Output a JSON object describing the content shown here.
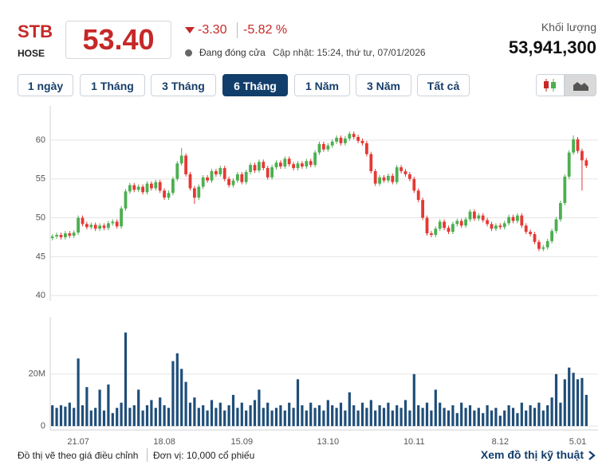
{
  "header": {
    "symbol": "STB",
    "exchange": "HOSE",
    "price": "53.40",
    "change": "-3.30",
    "change_pct": "-5.82 %",
    "status": "Đang đóng cửa",
    "updated": "Cập nhật: 15:24, thứ tư, 07/01/2026",
    "volume_label": "Khối lượng",
    "volume": "53,941,300"
  },
  "buttons": [
    "1 ngày",
    "1 Tháng",
    "3 Tháng",
    "6 Tháng",
    "1 Năm",
    "3 Năm",
    "Tất cả"
  ],
  "active_button": 3,
  "chart_data": [
    {
      "type": "candlestick",
      "up_color": "#4caf50",
      "down_color": "#e53935",
      "grid": true,
      "ylim": [
        39.3,
        64.4
      ],
      "yticks": [
        40,
        45,
        50,
        55,
        60
      ],
      "open": [
        47.4,
        47.6,
        47.8,
        47.5,
        48.0,
        47.7,
        48.1,
        50.0,
        49.2,
        48.8,
        49.1,
        48.6,
        49.0,
        48.7,
        49.3,
        49.5,
        48.9,
        51.2,
        53.4,
        54.2,
        53.6,
        54.0,
        53.3,
        54.4,
        53.8,
        54.6,
        53.5,
        52.6,
        53.2,
        55.0,
        57.0,
        58.0,
        55.6,
        53.8,
        52.6,
        54.0,
        55.2,
        54.8,
        56.0,
        55.6,
        56.4,
        55.0,
        54.2,
        54.8,
        55.6,
        54.6,
        55.9,
        56.8,
        56.1,
        57.2,
        56.4,
        55.2,
        56.5,
        57.1,
        56.6,
        57.6,
        56.9,
        56.4,
        57.0,
        56.6,
        57.3,
        56.8,
        58.4,
        59.5,
        58.8,
        59.3,
        59.8,
        60.3,
        59.6,
        60.2,
        60.8,
        60.4,
        59.9,
        59.6,
        58.2,
        56.0,
        54.4,
        55.2,
        54.8,
        55.4,
        54.6,
        56.5,
        56.0,
        55.6,
        55.0,
        53.5,
        52.3,
        50.0,
        48.0,
        47.8,
        48.6,
        49.5,
        48.7,
        48.2,
        49.2,
        49.6,
        49.0,
        49.8,
        50.8,
        49.9,
        50.3,
        49.7,
        49.2,
        48.6,
        49.0,
        48.8,
        49.3,
        50.1,
        49.6,
        50.3,
        49.0,
        48.2,
        47.9,
        46.9,
        46.0,
        46.2,
        47.0,
        48.3,
        49.8,
        51.9,
        55.3,
        58.4,
        60.1,
        58.6,
        57.4
      ],
      "high": [
        47.9,
        48.1,
        48.1,
        48.3,
        48.3,
        48.4,
        50.3,
        50.3,
        49.5,
        49.4,
        49.4,
        49.3,
        49.3,
        49.6,
        49.8,
        49.8,
        51.5,
        53.7,
        54.5,
        54.5,
        54.3,
        54.3,
        54.7,
        54.7,
        54.9,
        54.9,
        53.8,
        53.5,
        55.3,
        57.3,
        59.0,
        58.3,
        55.9,
        54.1,
        54.3,
        55.5,
        55.5,
        56.3,
        56.3,
        56.7,
        56.7,
        55.3,
        55.1,
        55.9,
        55.9,
        56.2,
        57.1,
        57.1,
        57.5,
        57.5,
        56.7,
        56.8,
        57.4,
        57.4,
        57.9,
        57.9,
        57.2,
        57.3,
        57.3,
        57.6,
        57.6,
        58.7,
        59.8,
        59.8,
        59.6,
        60.1,
        60.6,
        60.6,
        60.5,
        61.1,
        61.1,
        60.7,
        60.2,
        59.9,
        58.5,
        56.3,
        55.5,
        55.5,
        55.7,
        55.7,
        56.8,
        56.8,
        56.3,
        55.9,
        55.3,
        53.8,
        52.6,
        50.3,
        48.3,
        48.9,
        49.8,
        49.8,
        49.0,
        49.5,
        49.9,
        49.9,
        50.1,
        51.1,
        51.1,
        50.6,
        50.6,
        50.0,
        49.5,
        49.3,
        49.3,
        49.6,
        50.4,
        50.4,
        50.6,
        50.6,
        49.3,
        48.5,
        48.2,
        47.2,
        46.5,
        47.3,
        48.6,
        50.1,
        52.2,
        55.6,
        58.7,
        60.6,
        60.4,
        58.9,
        57.7
      ],
      "low": [
        47.1,
        47.3,
        47.2,
        47.2,
        47.4,
        47.4,
        47.8,
        48.9,
        48.5,
        48.5,
        48.3,
        48.3,
        48.4,
        48.4,
        49.0,
        48.6,
        48.6,
        50.9,
        53.1,
        53.3,
        53.3,
        53.0,
        53.0,
        53.5,
        53.5,
        53.2,
        52.3,
        52.3,
        52.9,
        54.7,
        56.7,
        55.3,
        53.5,
        51.8,
        52.3,
        53.7,
        54.5,
        54.5,
        55.3,
        55.3,
        54.7,
        53.9,
        53.9,
        54.5,
        54.3,
        54.3,
        55.6,
        55.8,
        55.8,
        56.1,
        54.9,
        54.9,
        56.2,
        56.3,
        56.3,
        56.6,
        56.1,
        56.1,
        56.3,
        56.3,
        56.5,
        56.5,
        58.1,
        58.5,
        58.5,
        59.0,
        59.5,
        59.3,
        59.3,
        59.9,
        60.1,
        59.6,
        59.3,
        57.9,
        55.7,
        54.1,
        54.1,
        54.5,
        54.5,
        54.3,
        54.3,
        55.7,
        55.3,
        54.7,
        53.2,
        52.0,
        49.7,
        47.7,
        47.5,
        47.5,
        48.3,
        48.4,
        47.9,
        47.9,
        48.9,
        48.7,
        48.7,
        49.5,
        49.6,
        49.6,
        49.4,
        48.9,
        48.3,
        48.3,
        48.5,
        48.5,
        49.0,
        49.3,
        49.3,
        48.7,
        47.9,
        47.6,
        46.6,
        45.7,
        45.7,
        45.9,
        46.7,
        48.0,
        49.5,
        51.6,
        55.0,
        58.1,
        58.3,
        53.5,
        56.4
      ],
      "close": [
        47.6,
        47.8,
        47.5,
        48.0,
        47.7,
        48.1,
        50.0,
        49.2,
        48.8,
        49.1,
        48.6,
        49.0,
        48.7,
        49.3,
        49.5,
        48.9,
        51.2,
        53.4,
        54.2,
        53.6,
        54.0,
        53.3,
        54.4,
        53.8,
        54.6,
        53.5,
        52.6,
        53.2,
        55.0,
        57.0,
        58.0,
        55.6,
        53.8,
        52.6,
        54.0,
        55.2,
        54.8,
        56.0,
        55.6,
        56.4,
        55.0,
        54.2,
        54.8,
        55.6,
        54.6,
        55.9,
        56.8,
        56.1,
        57.2,
        56.4,
        55.2,
        56.5,
        57.1,
        56.6,
        57.6,
        56.9,
        56.4,
        57.0,
        56.6,
        57.3,
        56.8,
        58.4,
        59.5,
        58.8,
        59.3,
        59.8,
        60.3,
        59.6,
        60.2,
        60.8,
        60.4,
        59.9,
        59.6,
        58.2,
        56.0,
        54.4,
        55.2,
        54.8,
        55.4,
        54.6,
        56.5,
        56.0,
        55.6,
        55.0,
        53.5,
        52.3,
        50.0,
        48.0,
        47.8,
        48.6,
        49.5,
        48.7,
        48.2,
        49.2,
        49.6,
        49.0,
        49.8,
        50.8,
        49.9,
        50.3,
        49.7,
        49.2,
        48.6,
        49.0,
        48.8,
        49.3,
        50.1,
        49.6,
        50.3,
        49.0,
        48.2,
        47.9,
        46.9,
        46.0,
        46.2,
        47.0,
        48.3,
        49.8,
        51.9,
        55.3,
        58.4,
        60.1,
        58.6,
        57.4,
        56.7
      ]
    },
    {
      "type": "bar",
      "color": "#1f4e79",
      "grid": true,
      "ylim": [
        -1.5,
        42
      ],
      "yticks": [
        0,
        {
          "value": 20,
          "label": "20M"
        }
      ],
      "categories": [
        null,
        null,
        null,
        null,
        null,
        null,
        "21.07",
        null,
        null,
        null,
        null,
        null,
        null,
        null,
        null,
        null,
        null,
        null,
        null,
        null,
        null,
        null,
        null,
        null,
        null,
        null,
        "18.08",
        null,
        null,
        null,
        null,
        null,
        null,
        null,
        null,
        null,
        null,
        null,
        null,
        null,
        null,
        null,
        null,
        null,
        "15.09",
        null,
        null,
        null,
        null,
        null,
        null,
        null,
        null,
        null,
        null,
        null,
        null,
        null,
        null,
        null,
        null,
        null,
        null,
        null,
        "13.10",
        null,
        null,
        null,
        null,
        null,
        null,
        null,
        null,
        null,
        null,
        null,
        null,
        null,
        null,
        null,
        null,
        null,
        null,
        null,
        "10.11",
        null,
        null,
        null,
        null,
        null,
        null,
        null,
        null,
        null,
        null,
        null,
        null,
        null,
        null,
        null,
        null,
        null,
        null,
        null,
        "8.12",
        null,
        null,
        null,
        null,
        null,
        null,
        null,
        null,
        null,
        null,
        null,
        null,
        null,
        null,
        null,
        null,
        null,
        "5.01",
        null,
        null
      ],
      "values": [
        8,
        7,
        8,
        7.5,
        9,
        7,
        26,
        8,
        15,
        6,
        7,
        14,
        6,
        16,
        5,
        7,
        9,
        36,
        7,
        8,
        14,
        6,
        8,
        10,
        7,
        11,
        8,
        7,
        25,
        28,
        22,
        17,
        9,
        11,
        7,
        8,
        6,
        10,
        7,
        9,
        6,
        8,
        12,
        7,
        9,
        6,
        8,
        10,
        14,
        7,
        9,
        6,
        7,
        8,
        6,
        9,
        7,
        18,
        8,
        6,
        9,
        7,
        8,
        6,
        10,
        8,
        7,
        9,
        6,
        13,
        8,
        6,
        9,
        7,
        10,
        6,
        8,
        7,
        9,
        6,
        8,
        7,
        10,
        6,
        20,
        8,
        7,
        9,
        6,
        14,
        9,
        7,
        6,
        8,
        5,
        9,
        7,
        8,
        6,
        7,
        5,
        8,
        6,
        7,
        4,
        6,
        8,
        7,
        5,
        9,
        6,
        8,
        7,
        9,
        6,
        8,
        11,
        20,
        9,
        18,
        22.5,
        20.5,
        18,
        18.5,
        12
      ]
    }
  ],
  "footer": {
    "note": "Đồ thị vẽ theo giá điều chỉnh",
    "unit": "Đơn vị: 10,000 cổ phiếu",
    "link": "Xem đồ thị kỹ thuật"
  }
}
